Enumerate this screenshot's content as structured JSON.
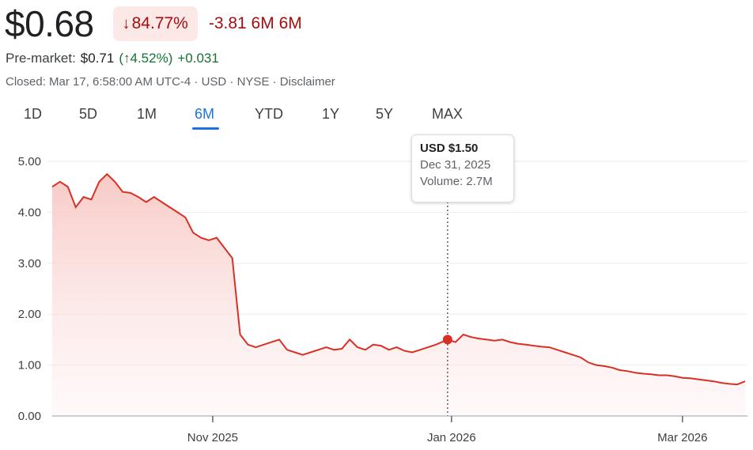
{
  "quote": {
    "price": "$0.68",
    "change_pct": "84.77%",
    "change_abs": "-3.81 6M 6M",
    "premarket_label": "Pre-market:",
    "premarket_price": "$0.71",
    "premarket_pct": "(↑4.52%)",
    "premarket_abs": "+0.031",
    "meta": "Closed: Mar 17, 6:58:00 AM UTC-4 · USD · NYSE · Disclaimer"
  },
  "tabs": [
    "1D",
    "5D",
    "1M",
    "6M",
    "YTD",
    "1Y",
    "5Y",
    "MAX"
  ],
  "active_tab": "6M",
  "tooltip": {
    "price": "USD $1.50",
    "date": "Dec 31, 2025",
    "volume": "Volume: 2.7M"
  },
  "colors": {
    "line": "#d93025",
    "fill": "#fce8e6",
    "negative": "#a50e0e",
    "positive": "#137333",
    "accent": "#1a73e8"
  },
  "chart_data": {
    "type": "area",
    "x_tick_labels": [
      "Nov 2025",
      "Jan 2026",
      "Mar 2026"
    ],
    "x_ticks": [
      "2025-11-01",
      "2026-01-01",
      "2026-03-01"
    ],
    "y_tick_labels": [
      "5.00",
      "4.00",
      "3.00",
      "2.00",
      "1.00",
      "0.00"
    ],
    "ylim": [
      0,
      5
    ],
    "xlim": [
      "2025-09-21",
      "2026-03-17"
    ],
    "grid": true,
    "highlight": {
      "x": "2025-12-31",
      "y": 1.5
    },
    "series": [
      {
        "x": [
          "2025-09-21",
          "2025-09-23",
          "2025-09-25",
          "2025-09-27",
          "2025-09-29",
          "2025-10-01",
          "2025-10-03",
          "2025-10-05",
          "2025-10-07",
          "2025-10-09",
          "2025-10-11",
          "2025-10-13",
          "2025-10-15",
          "2025-10-17",
          "2025-10-19",
          "2025-10-21",
          "2025-10-23",
          "2025-10-25",
          "2025-10-27",
          "2025-10-29",
          "2025-10-31",
          "2025-11-02",
          "2025-11-04",
          "2025-11-06",
          "2025-11-08",
          "2025-11-10",
          "2025-11-12",
          "2025-11-14",
          "2025-11-16",
          "2025-11-18",
          "2025-11-20",
          "2025-11-22",
          "2025-11-24",
          "2025-11-26",
          "2025-11-28",
          "2025-11-30",
          "2025-12-02",
          "2025-12-04",
          "2025-12-06",
          "2025-12-08",
          "2025-12-10",
          "2025-12-12",
          "2025-12-14",
          "2025-12-16",
          "2025-12-18",
          "2025-12-20",
          "2025-12-22",
          "2025-12-24",
          "2025-12-26",
          "2025-12-28",
          "2025-12-31",
          "2026-01-02",
          "2026-01-04",
          "2026-01-06",
          "2026-01-08",
          "2026-01-10",
          "2026-01-12",
          "2026-01-14",
          "2026-01-16",
          "2026-01-18",
          "2026-01-20",
          "2026-01-22",
          "2026-01-24",
          "2026-01-26",
          "2026-01-28",
          "2026-01-30",
          "2026-02-01",
          "2026-02-03",
          "2026-02-05",
          "2026-02-07",
          "2026-02-09",
          "2026-02-11",
          "2026-02-13",
          "2026-02-15",
          "2026-02-17",
          "2026-02-19",
          "2026-02-21",
          "2026-02-23",
          "2026-02-25",
          "2026-02-27",
          "2026-03-01",
          "2026-03-03",
          "2026-03-05",
          "2026-03-07",
          "2026-03-09",
          "2026-03-11",
          "2026-03-13",
          "2026-03-15",
          "2026-03-17"
        ],
        "y": [
          4.5,
          4.6,
          4.5,
          4.1,
          4.3,
          4.25,
          4.6,
          4.75,
          4.6,
          4.4,
          4.38,
          4.3,
          4.2,
          4.3,
          4.2,
          4.1,
          4.0,
          3.9,
          3.6,
          3.5,
          3.45,
          3.5,
          3.3,
          3.1,
          1.6,
          1.4,
          1.35,
          1.4,
          1.45,
          1.5,
          1.3,
          1.25,
          1.2,
          1.25,
          1.3,
          1.35,
          1.3,
          1.32,
          1.5,
          1.35,
          1.3,
          1.4,
          1.38,
          1.3,
          1.35,
          1.28,
          1.25,
          1.3,
          1.35,
          1.4,
          1.5,
          1.45,
          1.6,
          1.55,
          1.52,
          1.5,
          1.48,
          1.5,
          1.45,
          1.42,
          1.4,
          1.38,
          1.36,
          1.35,
          1.3,
          1.25,
          1.2,
          1.15,
          1.05,
          1.0,
          0.98,
          0.95,
          0.9,
          0.88,
          0.85,
          0.83,
          0.82,
          0.8,
          0.8,
          0.78,
          0.75,
          0.74,
          0.72,
          0.7,
          0.68,
          0.65,
          0.63,
          0.62,
          0.68
        ]
      }
    ]
  }
}
